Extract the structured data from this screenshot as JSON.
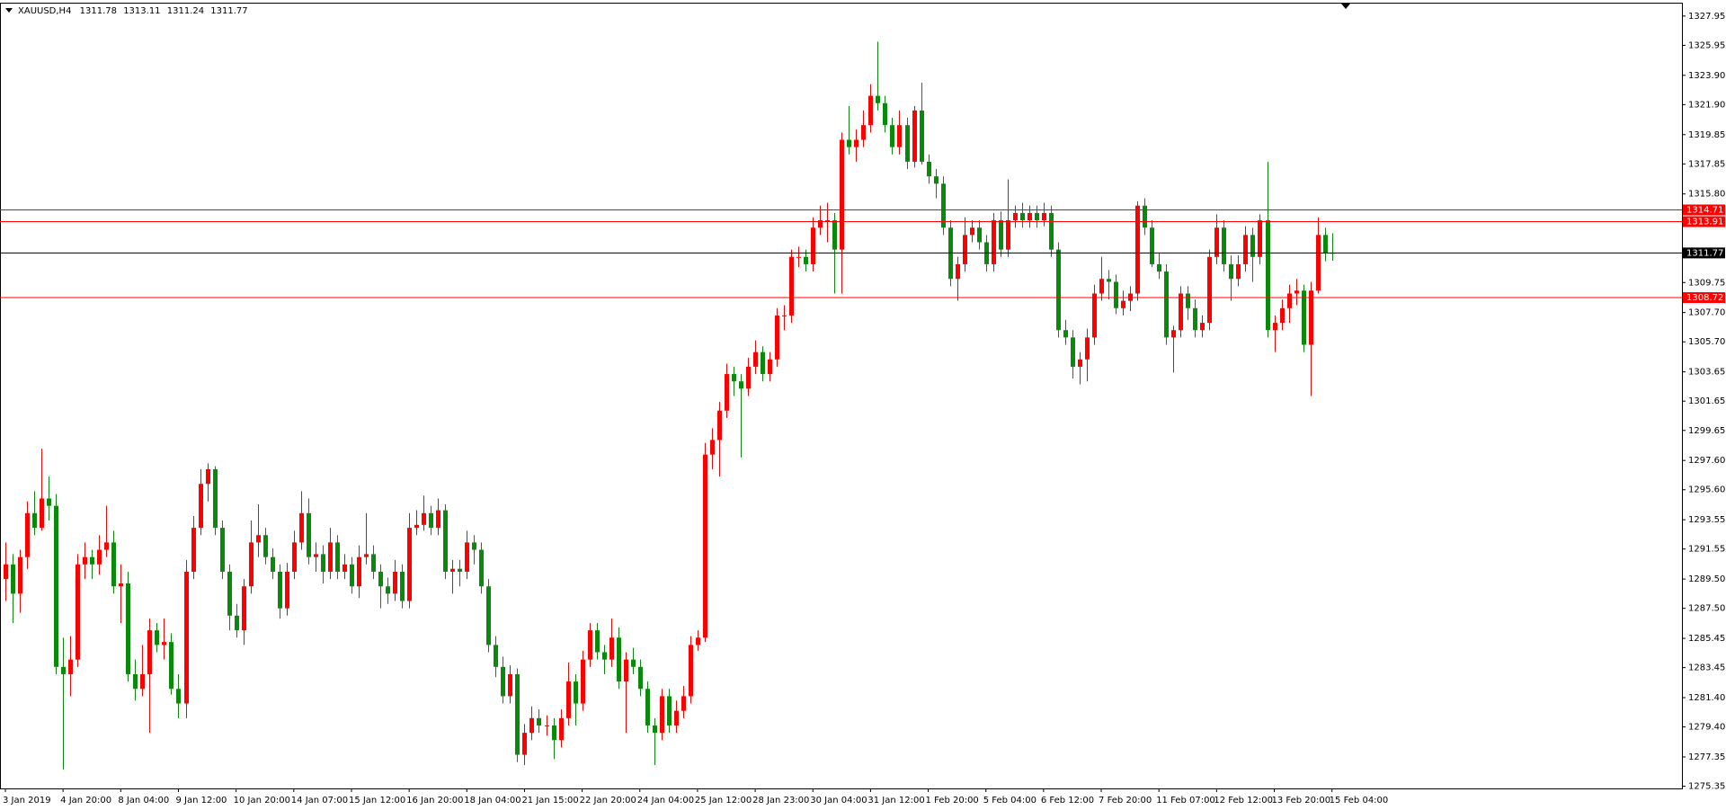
{
  "chart_data": {
    "type": "candlestick",
    "symbol": "XAUUSD,H4",
    "up_color": "#ff0000",
    "down_color": "#0a8a0a",
    "level_color": "#ff0000",
    "bid_color": "#000000",
    "ylim": [
      1275.2,
      1328.8
    ],
    "yticks": [
      1327.95,
      1325.95,
      {
        "value": 1323.9,
        "label": "1323.90"
      },
      {
        "value": 1321.9,
        "label": "1321.90"
      },
      1319.85,
      1317.85,
      {
        "value": 1315.8,
        "label": "1315.80"
      },
      1309.75,
      {
        "value": 1307.7,
        "label": "1307.70"
      },
      {
        "value": 1305.7,
        "label": "1305.70"
      },
      1303.65,
      1301.65,
      1299.65,
      {
        "value": 1297.6,
        "label": "1297.60"
      },
      {
        "value": 1295.6,
        "label": "1295.60"
      },
      1293.55,
      1291.55,
      {
        "value": 1289.5,
        "label": "1289.50"
      },
      {
        "value": 1287.5,
        "label": "1287.50"
      },
      1285.45,
      1283.45,
      {
        "value": 1281.4,
        "label": "1281.40"
      },
      {
        "value": 1279.4,
        "label": "1279.40"
      },
      1277.35,
      1275.35
    ],
    "levels": [
      1314.71,
      1313.91,
      1308.72
    ],
    "categories": [
      "3 Jan 2019",
      null,
      null,
      null,
      null,
      null,
      null,
      null,
      "4 Jan 20:00",
      null,
      null,
      null,
      null,
      null,
      null,
      null,
      "8 Jan 04:00",
      null,
      null,
      null,
      null,
      null,
      null,
      null,
      "9 Jan 12:00",
      null,
      null,
      null,
      null,
      null,
      null,
      null,
      "10 Jan 20:00",
      null,
      null,
      null,
      null,
      null,
      null,
      null,
      "14 Jan 07:00",
      null,
      null,
      null,
      null,
      null,
      null,
      null,
      "15 Jan 12:00",
      null,
      null,
      null,
      null,
      null,
      null,
      null,
      "16 Jan 20:00",
      null,
      null,
      null,
      null,
      null,
      null,
      null,
      "18 Jan 04:00",
      null,
      null,
      null,
      null,
      null,
      null,
      null,
      "21 Jan 15:00",
      null,
      null,
      null,
      null,
      null,
      null,
      null,
      "22 Jan 20:00",
      null,
      null,
      null,
      null,
      null,
      null,
      null,
      "24 Jan 04:00",
      null,
      null,
      null,
      null,
      null,
      null,
      null,
      "25 Jan 12:00",
      null,
      null,
      null,
      null,
      null,
      null,
      null,
      "28 Jan 23:00",
      null,
      null,
      null,
      null,
      null,
      null,
      null,
      "30 Jan 04:00",
      null,
      null,
      null,
      null,
      null,
      null,
      null,
      "31 Jan 12:00",
      null,
      null,
      null,
      null,
      null,
      null,
      null,
      "1 Feb 20:00",
      null,
      null,
      null,
      null,
      null,
      null,
      null,
      "5 Feb 04:00",
      null,
      null,
      null,
      null,
      null,
      null,
      null,
      "6 Feb 12:00",
      null,
      null,
      null,
      null,
      null,
      null,
      null,
      "7 Feb 20:00",
      null,
      null,
      null,
      null,
      null,
      null,
      null,
      "11 Feb 07:00",
      null,
      null,
      null,
      null,
      null,
      null,
      null,
      "12 Feb 12:00",
      null,
      null,
      null,
      null,
      null,
      null,
      null,
      "13 Feb 20:00",
      null,
      null,
      null,
      null,
      null,
      null,
      null,
      "15 Feb 04:00"
    ],
    "ohlc": [
      [
        1289.5,
        1292,
        1288,
        1290.5
      ],
      [
        1290.5,
        1291.2,
        1286.5,
        1288.5
      ],
      [
        1288.5,
        1291.5,
        1287.2,
        1291
      ],
      [
        1291,
        1294.8,
        1290.2,
        1294
      ],
      [
        1294,
        1295.5,
        1292.5,
        1293
      ],
      [
        1293,
        1298.4,
        1292.8,
        1295
      ],
      [
        1295,
        1296.5,
        1293.5,
        1294.5
      ],
      [
        1294.5,
        1295.3,
        1283,
        1283.5
      ],
      [
        1283.5,
        1285.5,
        1276.5,
        1283
      ],
      [
        1283,
        1285.6,
        1281.5,
        1284
      ],
      [
        1284,
        1291.2,
        1283.5,
        1290.5
      ],
      [
        1290.5,
        1292,
        1289.5,
        1291
      ],
      [
        1291,
        1291.5,
        1289.5,
        1290.5
      ],
      [
        1290.5,
        1292.5,
        1289.8,
        1291.5
      ],
      [
        1291.5,
        1294.5,
        1291,
        1292
      ],
      [
        1292,
        1292.8,
        1288.5,
        1289
      ],
      [
        1289,
        1290.5,
        1286.5,
        1289.2
      ],
      [
        1289.2,
        1290,
        1282.5,
        1283
      ],
      [
        1283,
        1284,
        1281.2,
        1282
      ],
      [
        1282,
        1285,
        1281.5,
        1283
      ],
      [
        1283,
        1286.8,
        1279,
        1286
      ],
      [
        1286,
        1286.5,
        1284.5,
        1285
      ],
      [
        1285,
        1286.8,
        1284,
        1285.2
      ],
      [
        1285.2,
        1285.8,
        1281.6,
        1282
      ],
      [
        1282,
        1283,
        1280,
        1281
      ],
      [
        1281,
        1290.8,
        1280,
        1290
      ],
      [
        1290,
        1293.8,
        1289.5,
        1293
      ],
      [
        1293,
        1297,
        1292.5,
        1296
      ],
      [
        1296,
        1297.4,
        1294.8,
        1297
      ],
      [
        1297,
        1297.2,
        1292.5,
        1293
      ],
      [
        1293,
        1293.5,
        1289.5,
        1290
      ],
      [
        1290,
        1290.5,
        1286,
        1287
      ],
      [
        1287,
        1287.8,
        1285.5,
        1286
      ],
      [
        1286,
        1289.5,
        1285,
        1289
      ],
      [
        1289,
        1293.5,
        1288.5,
        1292
      ],
      [
        1292,
        1294.6,
        1291,
        1292.5
      ],
      [
        1292.5,
        1293,
        1290.5,
        1291
      ],
      [
        1291,
        1291.6,
        1289.5,
        1290
      ],
      [
        1290,
        1290.5,
        1286.8,
        1287.5
      ],
      [
        1287.5,
        1290.6,
        1287,
        1290
      ],
      [
        1290,
        1292.8,
        1289.5,
        1292
      ],
      [
        1292,
        1295.5,
        1291.5,
        1294
      ],
      [
        1294,
        1295,
        1290.5,
        1291
      ],
      [
        1291,
        1292,
        1290,
        1291.2
      ],
      [
        1291.2,
        1291.8,
        1289.2,
        1290
      ],
      [
        1290,
        1293,
        1289.5,
        1292
      ],
      [
        1292,
        1292.5,
        1289.5,
        1290
      ],
      [
        1290,
        1291.2,
        1289.5,
        1290.5
      ],
      [
        1290.5,
        1291,
        1288.5,
        1289
      ],
      [
        1289,
        1291.8,
        1288.2,
        1291
      ],
      [
        1291,
        1294,
        1290.5,
        1291.2
      ],
      [
        1291.2,
        1291.8,
        1289.5,
        1290
      ],
      [
        1290,
        1290.5,
        1287.5,
        1289
      ],
      [
        1289,
        1289.6,
        1287.8,
        1288.5
      ],
      [
        1288.5,
        1290.8,
        1288,
        1290
      ],
      [
        1290,
        1290.5,
        1287.5,
        1288
      ],
      [
        1288,
        1294,
        1287.5,
        1293
      ],
      [
        1293,
        1294.2,
        1292.5,
        1293.2
      ],
      [
        1293.2,
        1295.2,
        1292.8,
        1294
      ],
      [
        1294,
        1294.5,
        1292.5,
        1293
      ],
      [
        1293,
        1295,
        1292.5,
        1294.2
      ],
      [
        1294.2,
        1294.6,
        1289.5,
        1290
      ],
      [
        1290,
        1290.8,
        1288.5,
        1290.2
      ],
      [
        1290.2,
        1290.8,
        1289,
        1290
      ],
      [
        1290,
        1292.8,
        1289.5,
        1292
      ],
      [
        1292,
        1292.5,
        1290.5,
        1291.5
      ],
      [
        1291.5,
        1292,
        1288.5,
        1289
      ],
      [
        1289,
        1289.5,
        1284.5,
        1285
      ],
      [
        1285,
        1285.6,
        1282.8,
        1283.5
      ],
      [
        1283.5,
        1284.2,
        1281,
        1281.5
      ],
      [
        1281.5,
        1283.6,
        1281,
        1283
      ],
      [
        1283,
        1283.4,
        1277,
        1277.5
      ],
      [
        1277.5,
        1279.6,
        1276.8,
        1279
      ],
      [
        1279,
        1280.8,
        1278.5,
        1280
      ],
      [
        1280,
        1280.6,
        1279,
        1279.5
      ],
      [
        1279.5,
        1280.2,
        1278.8,
        1279.5
      ],
      [
        1279.5,
        1280,
        1277.2,
        1278.5
      ],
      [
        1278.5,
        1280.6,
        1278,
        1280
      ],
      [
        1280,
        1283.8,
        1279.5,
        1282.5
      ],
      [
        1282.5,
        1283,
        1279.5,
        1281
      ],
      [
        1281,
        1284.6,
        1280.5,
        1284
      ],
      [
        1284,
        1286.5,
        1283.5,
        1286
      ],
      [
        1286,
        1286.5,
        1284,
        1284.5
      ],
      [
        1284.5,
        1285,
        1283,
        1284
      ],
      [
        1284,
        1286.8,
        1283.5,
        1285.5
      ],
      [
        1285.5,
        1286.2,
        1282,
        1282.5
      ],
      [
        1282.5,
        1284.5,
        1279,
        1284
      ],
      [
        1284,
        1284.8,
        1283,
        1283.5
      ],
      [
        1283.5,
        1284,
        1281.5,
        1282
      ],
      [
        1282,
        1282.5,
        1279,
        1279.5
      ],
      [
        1279.5,
        1280,
        1276.8,
        1279
      ],
      [
        1279,
        1282,
        1278.5,
        1281.5
      ],
      [
        1281.5,
        1282,
        1279,
        1279.5
      ],
      [
        1279.5,
        1281.2,
        1279,
        1280.5
      ],
      [
        1280.5,
        1282.2,
        1280,
        1281.5
      ],
      [
        1281.5,
        1285.6,
        1281,
        1285
      ],
      [
        1285,
        1286,
        1284.6,
        1285.5
      ],
      [
        1285.5,
        1298.8,
        1285.2,
        1298
      ],
      [
        1298,
        1299.8,
        1297,
        1299
      ],
      [
        1299,
        1301.6,
        1296.5,
        1301
      ],
      [
        1301,
        1304.2,
        1300.5,
        1303.5
      ],
      [
        1303.5,
        1304,
        1302,
        1303
      ],
      [
        1303,
        1303.5,
        1297.8,
        1302.5
      ],
      [
        1302.5,
        1304.6,
        1302,
        1304
      ],
      [
        1304,
        1305.8,
        1303.5,
        1305
      ],
      [
        1305,
        1305.4,
        1303,
        1303.5
      ],
      [
        1303.5,
        1305,
        1303,
        1304.5
      ],
      [
        1304.5,
        1308,
        1304,
        1307.5
      ],
      [
        1307.5,
        1308.2,
        1306.5,
        1307.5
      ],
      [
        1307.5,
        1312,
        1307,
        1311.5
      ],
      [
        1311.5,
        1312.2,
        1310.8,
        1311.5
      ],
      [
        1311.5,
        1312,
        1310.5,
        1311
      ],
      [
        1311,
        1314.2,
        1310.5,
        1313.5
      ],
      [
        1313.5,
        1315,
        1313,
        1314
      ],
      [
        1314,
        1315.2,
        1312.5,
        1314
      ],
      [
        1314,
        1314.5,
        1309,
        1312
      ],
      [
        1312,
        1320,
        1309,
        1319.5
      ],
      [
        1319.5,
        1321.8,
        1318.5,
        1319
      ],
      [
        1319,
        1320.2,
        1318,
        1319.5
      ],
      [
        1319.5,
        1321.5,
        1319,
        1320.5
      ],
      [
        1320.5,
        1323.3,
        1320,
        1322.5
      ],
      [
        1322.5,
        1326.2,
        1321.5,
        1322
      ],
      [
        1322,
        1322.5,
        1320,
        1320.5
      ],
      [
        1320.5,
        1321,
        1318.5,
        1319
      ],
      [
        1319,
        1321.5,
        1318.5,
        1320.5
      ],
      [
        1320.5,
        1321,
        1317.5,
        1318
      ],
      [
        1318,
        1321.8,
        1317.6,
        1321.5
      ],
      [
        1321.5,
        1323.4,
        1317.8,
        1318
      ],
      [
        1318,
        1318.5,
        1316.5,
        1317
      ],
      [
        1317,
        1317.5,
        1315.5,
        1316.5
      ],
      [
        1316.5,
        1317,
        1313,
        1313.5
      ],
      [
        1313.5,
        1314,
        1309.5,
        1310
      ],
      [
        1310,
        1311.5,
        1308.5,
        1311
      ],
      [
        1311,
        1314.2,
        1310.5,
        1313
      ],
      [
        1313,
        1314,
        1312.5,
        1313.5
      ],
      [
        1313.5,
        1314,
        1312,
        1312.5
      ],
      [
        1312.5,
        1313,
        1310.5,
        1311
      ],
      [
        1311,
        1314.5,
        1310.5,
        1314
      ],
      [
        1314,
        1314.6,
        1311.5,
        1312
      ],
      [
        1312,
        1316.8,
        1311.5,
        1314
      ],
      [
        1314,
        1315,
        1313.5,
        1314.5
      ],
      [
        1314.5,
        1315.2,
        1313.5,
        1314
      ],
      [
        1314,
        1315,
        1313.5,
        1314.5
      ],
      [
        1314.5,
        1315,
        1313.5,
        1314
      ],
      [
        1314,
        1315.2,
        1313.6,
        1314.5
      ],
      [
        1314.5,
        1315,
        1311.5,
        1312
      ],
      [
        1312,
        1312.5,
        1306,
        1306.5
      ],
      [
        1306.5,
        1307.2,
        1305.5,
        1306
      ],
      [
        1306,
        1306.5,
        1303.2,
        1304
      ],
      [
        1304,
        1305,
        1302.8,
        1304.5
      ],
      [
        1304.5,
        1306.6,
        1303,
        1306
      ],
      [
        1306,
        1309.6,
        1305.5,
        1309
      ],
      [
        1309,
        1311.5,
        1308.5,
        1310
      ],
      [
        1310,
        1310.6,
        1308.6,
        1309.8
      ],
      [
        1309.8,
        1310.3,
        1307.6,
        1308
      ],
      [
        1308,
        1309.2,
        1307.5,
        1308.5
      ],
      [
        1308.5,
        1309.5,
        1307.8,
        1309
      ],
      [
        1309,
        1315.3,
        1308.5,
        1315
      ],
      [
        1315,
        1315.5,
        1313,
        1313.5
      ],
      [
        1313.5,
        1314,
        1310.8,
        1311
      ],
      [
        1311,
        1311.8,
        1310,
        1310.5
      ],
      [
        1310.5,
        1311,
        1305.5,
        1306
      ],
      [
        1306,
        1306.8,
        1303.6,
        1306.5
      ],
      [
        1306.5,
        1309.5,
        1306,
        1309
      ],
      [
        1309,
        1309.5,
        1307.2,
        1308
      ],
      [
        1308,
        1308.6,
        1306,
        1306.5
      ],
      [
        1306.5,
        1307.5,
        1306,
        1307
      ],
      [
        1307,
        1312,
        1306.5,
        1311.5
      ],
      [
        1311.5,
        1314.4,
        1311,
        1313.5
      ],
      [
        1313.5,
        1314,
        1310.5,
        1311
      ],
      [
        1311,
        1311.6,
        1308.5,
        1310
      ],
      [
        1310,
        1311.6,
        1309.5,
        1311
      ],
      [
        1311,
        1313.6,
        1310.5,
        1313
      ],
      [
        1313,
        1313.5,
        1309.8,
        1311.5
      ],
      [
        1311.5,
        1314.4,
        1311,
        1314
      ],
      [
        1314,
        1318,
        1306,
        1306.5
      ],
      [
        1306.5,
        1307.5,
        1305,
        1307
      ],
      [
        1307,
        1308.6,
        1306.5,
        1308
      ],
      [
        1308,
        1309.6,
        1307,
        1309
      ],
      [
        1309,
        1310,
        1308.2,
        1309.2
      ],
      [
        1309.2,
        1309.6,
        1305,
        1305.5
      ],
      [
        1305.5,
        1309.8,
        1302,
        1309.2
      ],
      [
        1309.2,
        1314.2,
        1309,
        1313
      ],
      [
        1313,
        1313.5,
        1311.2,
        1311.78
      ],
      [
        1311.78,
        1313.11,
        1311.24,
        1311.77
      ]
    ]
  }
}
